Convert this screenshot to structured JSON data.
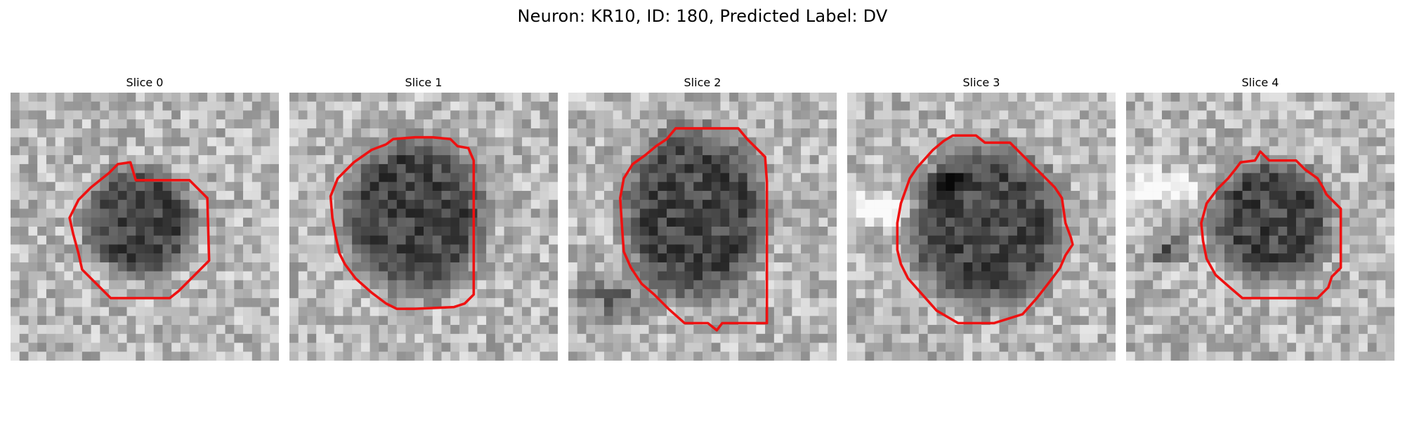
{
  "figure": {
    "title": "Neuron: KR10, ID: 180, Predicted Label: DV"
  },
  "colors": {
    "contour": "#ee1111",
    "background": "#ffffff"
  },
  "slices": [
    {
      "title": "Slice 0"
    },
    {
      "title": "Slice 1"
    },
    {
      "title": "Slice 2"
    },
    {
      "title": "Slice 3"
    },
    {
      "title": "Slice 4"
    }
  ]
}
